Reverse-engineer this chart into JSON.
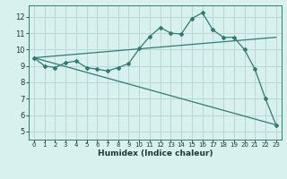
{
  "title": "",
  "xlabel": "Humidex (Indice chaleur)",
  "ylabel": "",
  "xlim": [
    -0.5,
    23.5
  ],
  "ylim": [
    4.5,
    12.7
  ],
  "xticks": [
    0,
    1,
    2,
    3,
    4,
    5,
    6,
    7,
    8,
    9,
    10,
    11,
    12,
    13,
    14,
    15,
    16,
    17,
    18,
    19,
    20,
    21,
    22,
    23
  ],
  "yticks": [
    5,
    6,
    7,
    8,
    9,
    10,
    11,
    12
  ],
  "bg_color": "#d8f0ee",
  "line_color": "#2e7d72",
  "grid_color": "#b8d8d4",
  "line1_x": [
    0,
    1,
    2,
    3,
    4,
    5,
    6,
    7,
    8,
    9,
    10,
    11,
    12,
    13,
    14,
    15,
    16,
    17,
    18,
    19,
    20,
    21,
    22,
    23
  ],
  "line1_y": [
    9.5,
    9.0,
    8.9,
    9.2,
    9.3,
    8.9,
    8.8,
    8.7,
    8.9,
    9.15,
    10.05,
    10.8,
    11.35,
    11.0,
    10.95,
    11.9,
    12.25,
    11.2,
    10.75,
    10.75,
    10.0,
    8.8,
    7.0,
    5.4
  ],
  "line2_x": [
    0,
    23
  ],
  "line2_y": [
    9.5,
    10.75
  ],
  "line3_x": [
    0,
    23
  ],
  "line3_y": [
    9.5,
    5.4
  ]
}
